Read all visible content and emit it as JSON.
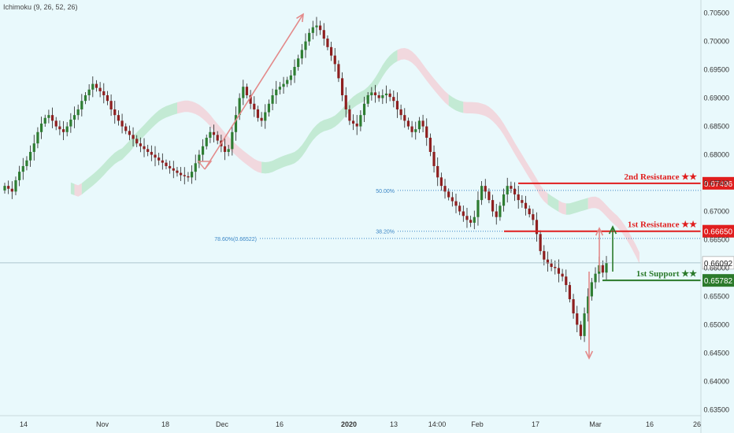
{
  "indicator_label": "Ichimoku (9, 26, 52, 26)",
  "colors": {
    "background": "#e9f9fc",
    "up_candle": "#2e7d32",
    "down_candle": "#8e1f1f",
    "wick": "#222222",
    "cloud_bull": "#b9e6c9",
    "cloud_bear": "#f3cfd6",
    "resistance": "#e01e1e",
    "support": "#2b7a2b",
    "fib": "#3b86c6",
    "arrow_up": "#e38a8a",
    "arrow_down": "#e38a8a",
    "arrow_green": "#2b7a2b",
    "axis_text": "#333333",
    "current_price_line": "#9ab8bf"
  },
  "chart_data": {
    "type": "candlestick",
    "ylim": [
      0.6345,
      0.7062
    ],
    "x_ticks": [
      "14",
      "Nov",
      "18",
      "Dec",
      "16",
      "2020",
      "13",
      "14:00",
      "Feb",
      "17",
      "Mar",
      "16",
      "26"
    ],
    "x_tick_bold": [
      "2020"
    ],
    "y_ticks": [
      "0.70500",
      "0.70000",
      "0.69500",
      "0.69000",
      "0.68500",
      "0.68000",
      "0.67500",
      "0.67000",
      "0.66500",
      "0.66000",
      "0.65500",
      "0.65000",
      "0.64500",
      "0.64000",
      "0.63500"
    ],
    "close_series": [
      0.6745,
      0.674,
      0.6735,
      0.6755,
      0.677,
      0.678,
      0.679,
      0.6805,
      0.682,
      0.684,
      0.6855,
      0.6865,
      0.687,
      0.686,
      0.685,
      0.6845,
      0.684,
      0.685,
      0.6862,
      0.687,
      0.688,
      0.6895,
      0.6905,
      0.6915,
      0.6925,
      0.6918,
      0.6912,
      0.6905,
      0.6895,
      0.688,
      0.687,
      0.686,
      0.685,
      0.6842,
      0.6835,
      0.6828,
      0.682,
      0.6815,
      0.681,
      0.6805,
      0.68,
      0.6795,
      0.679,
      0.6786,
      0.678,
      0.6776,
      0.6772,
      0.6768,
      0.6764,
      0.6762,
      0.676,
      0.677,
      0.6785,
      0.68,
      0.6815,
      0.683,
      0.684,
      0.6835,
      0.6825,
      0.6815,
      0.6805,
      0.681,
      0.684,
      0.687,
      0.69,
      0.692,
      0.6905,
      0.689,
      0.688,
      0.6865,
      0.686,
      0.6875,
      0.689,
      0.6905,
      0.6915,
      0.692,
      0.6925,
      0.6932,
      0.694,
      0.6955,
      0.697,
      0.6985,
      0.7,
      0.7015,
      0.7025,
      0.7028,
      0.702,
      0.7005,
      0.699,
      0.6975,
      0.696,
      0.6935,
      0.6905,
      0.688,
      0.686,
      0.6855,
      0.685,
      0.687,
      0.689,
      0.6905,
      0.691,
      0.6905,
      0.69,
      0.6905,
      0.6908,
      0.6902,
      0.6895,
      0.688,
      0.687,
      0.686,
      0.685,
      0.684,
      0.6845,
      0.686,
      0.685,
      0.683,
      0.6805,
      0.678,
      0.676,
      0.6745,
      0.6735,
      0.6725,
      0.6718,
      0.671,
      0.67,
      0.6692,
      0.6685,
      0.668,
      0.669,
      0.672,
      0.6745,
      0.6735,
      0.672,
      0.67,
      0.669,
      0.671,
      0.673,
      0.6745,
      0.674,
      0.673,
      0.672,
      0.6715,
      0.6705,
      0.6695,
      0.6685,
      0.666,
      0.663,
      0.6615,
      0.6608,
      0.6602,
      0.66,
      0.659,
      0.6585,
      0.657,
      0.6545,
      0.652,
      0.65,
      0.648,
      0.652,
      0.655,
      0.6575,
      0.659,
      0.6605,
      0.6592,
      0.6609
    ],
    "last_price": "0.66092",
    "levels": [
      {
        "name": "2nd Resistance ★★",
        "value": 0.67496,
        "label_value": "0.67496",
        "type": "resistance"
      },
      {
        "name": "1st Resistance ★★",
        "value": 0.6665,
        "label_value": "0.66650",
        "type": "resistance"
      },
      {
        "name": "1st Support ★★",
        "value": 0.65782,
        "label_value": "0.65782",
        "type": "support"
      }
    ],
    "fib_levels": [
      {
        "label": "50.00%",
        "value": 0.6737
      },
      {
        "label": "38.20%",
        "value": 0.6665
      },
      {
        "label": "78.60%(0.66522)",
        "value": 0.66522
      }
    ],
    "price_tag_last": "0.66092"
  }
}
